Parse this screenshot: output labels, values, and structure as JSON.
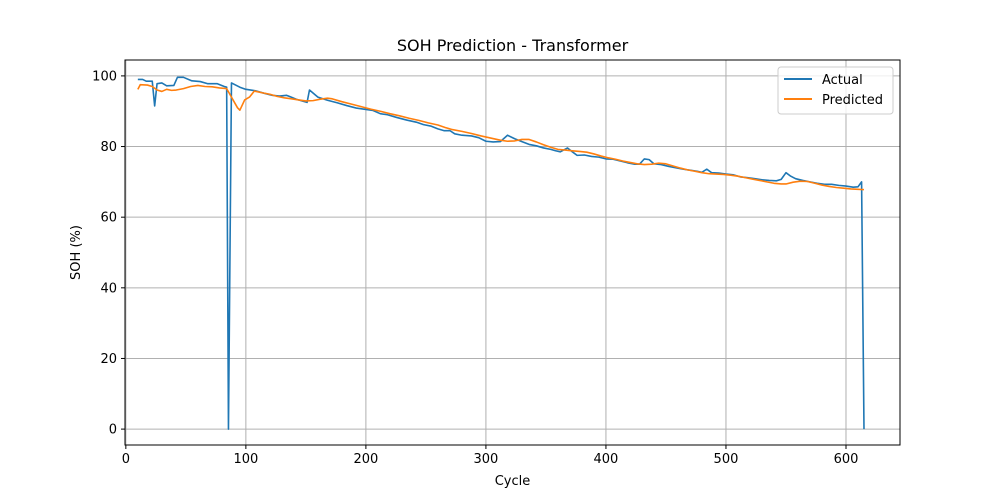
{
  "chart_data": {
    "type": "line",
    "title": "SOH Prediction - Transformer",
    "xlabel": "Cycle",
    "ylabel": "SOH (%)",
    "xlim": [
      -0.7,
      645
    ],
    "ylim": [
      -4.5,
      104.5
    ],
    "xticks": [
      0,
      100,
      200,
      300,
      400,
      500,
      600
    ],
    "yticks": [
      0,
      20,
      40,
      60,
      80,
      100
    ],
    "grid": true,
    "legend_position": "top-right",
    "series": [
      {
        "name": "Actual",
        "color": "#1f77b4",
        "points": [
          [
            10,
            99.0
          ],
          [
            14,
            99.0
          ],
          [
            17,
            98.5
          ],
          [
            22,
            98.5
          ],
          [
            24,
            91.5
          ],
          [
            26,
            97.8
          ],
          [
            30,
            98.0
          ],
          [
            34,
            97.2
          ],
          [
            40,
            97.3
          ],
          [
            43,
            99.6
          ],
          [
            48,
            99.6
          ],
          [
            55,
            98.6
          ],
          [
            62,
            98.4
          ],
          [
            68,
            97.8
          ],
          [
            76,
            97.8
          ],
          [
            82,
            97.0
          ],
          [
            84,
            96.8
          ],
          [
            85.5,
            0.0
          ],
          [
            88,
            98.0
          ],
          [
            95,
            96.8
          ],
          [
            100,
            96.2
          ],
          [
            108,
            95.8
          ],
          [
            115,
            95.1
          ],
          [
            122,
            94.5
          ],
          [
            128,
            94.3
          ],
          [
            134,
            94.5
          ],
          [
            137,
            94.1
          ],
          [
            142,
            93.4
          ],
          [
            148,
            92.8
          ],
          [
            151,
            92.5
          ],
          [
            153,
            96.0
          ],
          [
            160,
            94.0
          ],
          [
            168,
            93.1
          ],
          [
            176,
            92.4
          ],
          [
            184,
            91.6
          ],
          [
            192,
            90.9
          ],
          [
            200,
            90.5
          ],
          [
            206,
            90.2
          ],
          [
            212,
            89.3
          ],
          [
            218,
            89.0
          ],
          [
            226,
            88.2
          ],
          [
            234,
            87.5
          ],
          [
            242,
            86.9
          ],
          [
            248,
            86.2
          ],
          [
            254,
            85.8
          ],
          [
            260,
            85.0
          ],
          [
            265,
            84.5
          ],
          [
            270,
            84.5
          ],
          [
            274,
            83.6
          ],
          [
            280,
            83.2
          ],
          [
            288,
            83.0
          ],
          [
            294,
            82.5
          ],
          [
            300,
            81.5
          ],
          [
            306,
            81.3
          ],
          [
            312,
            81.4
          ],
          [
            318,
            83.2
          ],
          [
            324,
            82.2
          ],
          [
            330,
            81.4
          ],
          [
            336,
            80.6
          ],
          [
            342,
            80.2
          ],
          [
            348,
            79.6
          ],
          [
            354,
            79.2
          ],
          [
            358,
            78.8
          ],
          [
            362,
            78.5
          ],
          [
            368,
            79.6
          ],
          [
            372,
            78.5
          ],
          [
            376,
            77.5
          ],
          [
            382,
            77.6
          ],
          [
            388,
            77.2
          ],
          [
            394,
            77.0
          ],
          [
            400,
            76.5
          ],
          [
            406,
            76.4
          ],
          [
            412,
            75.9
          ],
          [
            418,
            75.4
          ],
          [
            424,
            75.0
          ],
          [
            428,
            75.0
          ],
          [
            432,
            76.5
          ],
          [
            436,
            76.3
          ],
          [
            440,
            75.1
          ],
          [
            446,
            74.9
          ],
          [
            452,
            74.4
          ],
          [
            458,
            74.0
          ],
          [
            464,
            73.6
          ],
          [
            470,
            73.3
          ],
          [
            476,
            73.0
          ],
          [
            480,
            72.7
          ],
          [
            484,
            73.6
          ],
          [
            488,
            72.6
          ],
          [
            494,
            72.5
          ],
          [
            500,
            72.2
          ],
          [
            506,
            72.0
          ],
          [
            512,
            71.4
          ],
          [
            518,
            71.2
          ],
          [
            524,
            70.9
          ],
          [
            530,
            70.6
          ],
          [
            536,
            70.4
          ],
          [
            542,
            70.3
          ],
          [
            546,
            70.7
          ],
          [
            550,
            72.6
          ],
          [
            554,
            71.6
          ],
          [
            558,
            70.9
          ],
          [
            564,
            70.4
          ],
          [
            570,
            70.0
          ],
          [
            576,
            69.6
          ],
          [
            582,
            69.3
          ],
          [
            588,
            69.3
          ],
          [
            594,
            69.0
          ],
          [
            600,
            68.8
          ],
          [
            606,
            68.5
          ],
          [
            610,
            68.6
          ],
          [
            613,
            70.0
          ],
          [
            615,
            0.0
          ]
        ]
      },
      {
        "name": "Predicted",
        "color": "#ff7f0e",
        "points": [
          [
            10,
            96.2
          ],
          [
            12,
            97.5
          ],
          [
            18,
            97.4
          ],
          [
            22,
            97.0
          ],
          [
            26,
            96.0
          ],
          [
            30,
            95.6
          ],
          [
            34,
            96.2
          ],
          [
            38,
            95.9
          ],
          [
            42,
            96.0
          ],
          [
            48,
            96.4
          ],
          [
            54,
            97.0
          ],
          [
            60,
            97.3
          ],
          [
            66,
            97.0
          ],
          [
            72,
            96.9
          ],
          [
            78,
            96.6
          ],
          [
            84,
            96.4
          ],
          [
            88,
            94.0
          ],
          [
            93,
            91.0
          ],
          [
            95,
            90.3
          ],
          [
            99,
            93.2
          ],
          [
            103,
            94.0
          ],
          [
            107,
            95.7
          ],
          [
            114,
            95.2
          ],
          [
            120,
            94.8
          ],
          [
            126,
            94.2
          ],
          [
            132,
            93.8
          ],
          [
            138,
            93.5
          ],
          [
            144,
            93.2
          ],
          [
            150,
            92.9
          ],
          [
            156,
            93.0
          ],
          [
            162,
            93.4
          ],
          [
            168,
            93.7
          ],
          [
            172,
            93.5
          ],
          [
            180,
            92.7
          ],
          [
            188,
            92.0
          ],
          [
            196,
            91.3
          ],
          [
            204,
            90.6
          ],
          [
            212,
            90.0
          ],
          [
            220,
            89.3
          ],
          [
            228,
            88.7
          ],
          [
            236,
            88.0
          ],
          [
            244,
            87.4
          ],
          [
            252,
            86.7
          ],
          [
            260,
            86.1
          ],
          [
            266,
            85.4
          ],
          [
            272,
            84.8
          ],
          [
            280,
            84.3
          ],
          [
            288,
            83.7
          ],
          [
            296,
            83.0
          ],
          [
            304,
            82.4
          ],
          [
            312,
            81.8
          ],
          [
            318,
            81.5
          ],
          [
            324,
            81.6
          ],
          [
            330,
            82.0
          ],
          [
            336,
            82.0
          ],
          [
            342,
            81.3
          ],
          [
            348,
            80.5
          ],
          [
            354,
            79.8
          ],
          [
            360,
            79.2
          ],
          [
            366,
            79.0
          ],
          [
            372,
            78.8
          ],
          [
            378,
            78.6
          ],
          [
            384,
            78.4
          ],
          [
            390,
            77.9
          ],
          [
            396,
            77.3
          ],
          [
            402,
            76.8
          ],
          [
            408,
            76.4
          ],
          [
            414,
            75.9
          ],
          [
            420,
            75.5
          ],
          [
            426,
            75.1
          ],
          [
            432,
            74.9
          ],
          [
            438,
            75.0
          ],
          [
            444,
            75.3
          ],
          [
            450,
            75.1
          ],
          [
            456,
            74.5
          ],
          [
            462,
            73.9
          ],
          [
            468,
            73.4
          ],
          [
            474,
            73.0
          ],
          [
            480,
            72.6
          ],
          [
            486,
            72.3
          ],
          [
            492,
            72.2
          ],
          [
            498,
            72.1
          ],
          [
            504,
            71.9
          ],
          [
            510,
            71.6
          ],
          [
            516,
            71.2
          ],
          [
            522,
            70.8
          ],
          [
            528,
            70.4
          ],
          [
            534,
            70.0
          ],
          [
            540,
            69.6
          ],
          [
            546,
            69.4
          ],
          [
            550,
            69.4
          ],
          [
            556,
            69.9
          ],
          [
            562,
            70.2
          ],
          [
            568,
            70.1
          ],
          [
            574,
            69.6
          ],
          [
            580,
            69.1
          ],
          [
            586,
            68.7
          ],
          [
            592,
            68.4
          ],
          [
            598,
            68.2
          ],
          [
            604,
            68.0
          ],
          [
            610,
            67.9
          ],
          [
            615,
            67.8
          ]
        ]
      }
    ]
  }
}
